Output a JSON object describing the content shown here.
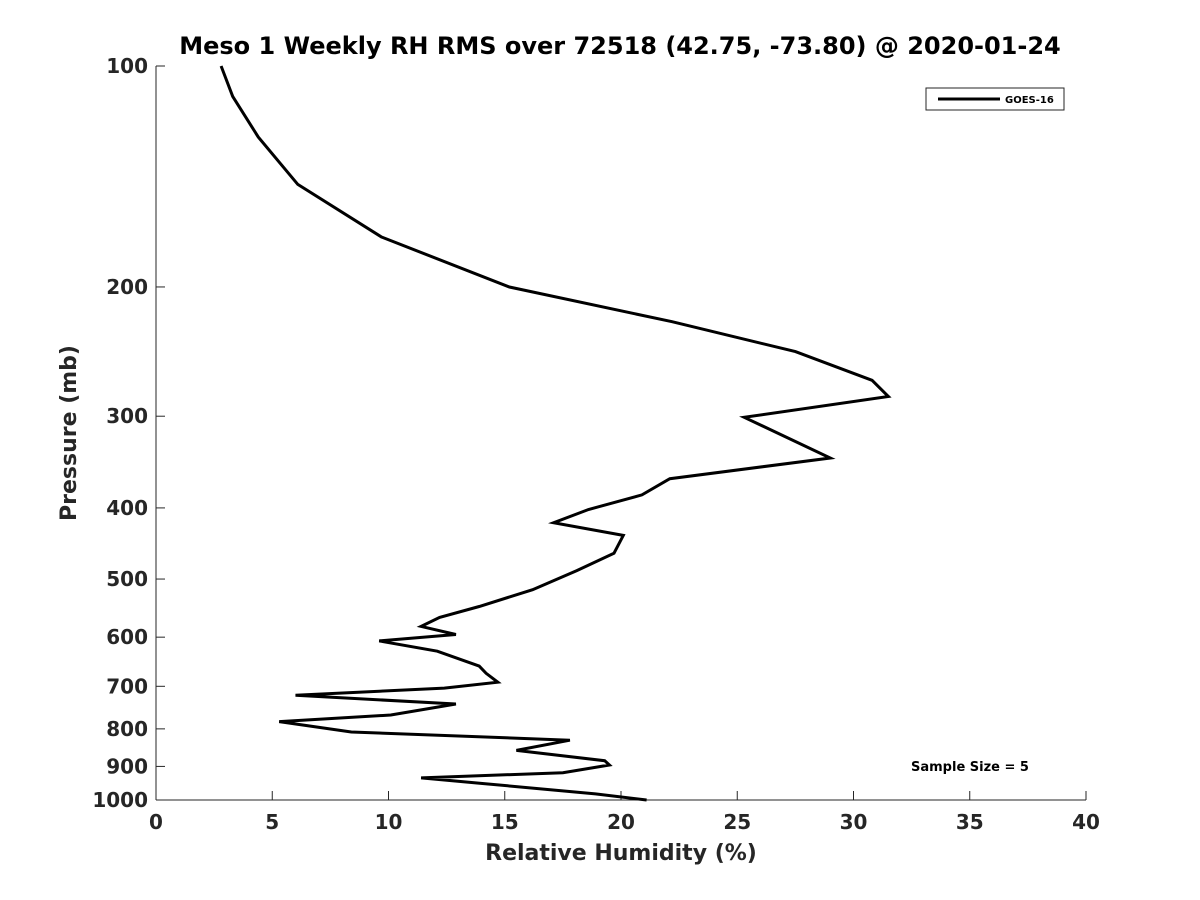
{
  "chart_data": {
    "type": "line",
    "title": "Meso 1 Weekly RH RMS over 72518 (42.75, -73.80) @ 2020-01-24",
    "xlabel": "Relative Humidity (%)",
    "ylabel": "Pressure (mb)",
    "xlim": [
      0,
      40
    ],
    "ylim": [
      100,
      1000
    ],
    "y_scale": "log",
    "y_reversed": true,
    "grid": false,
    "x_ticks": [
      0,
      5,
      10,
      15,
      20,
      25,
      30,
      35,
      40
    ],
    "x_tick_labels": [
      "0",
      "5",
      "10",
      "15",
      "20",
      "25",
      "30",
      "35",
      "40"
    ],
    "y_ticks": [
      100,
      200,
      300,
      400,
      500,
      600,
      700,
      800,
      900,
      1000
    ],
    "y_tick_labels": [
      "100",
      "200",
      "300",
      "400",
      "500",
      "600",
      "700",
      "800",
      "900",
      "1000"
    ],
    "legend": {
      "placement": "top-right",
      "entries": [
        "GOES-16"
      ]
    },
    "annotation": "Sample Size = 5",
    "series": [
      {
        "name": "GOES-16",
        "color": "#000000",
        "x": [
          2.8,
          3.3,
          4.4,
          6.1,
          9.7,
          15.2,
          22.2,
          27.5,
          30.8,
          31.5,
          25.3,
          29.0,
          22.1,
          20.9,
          18.6,
          17.1,
          20.1,
          19.7,
          18.1,
          16.2,
          13.9,
          12.2,
          11.4,
          12.9,
          9.6,
          12.1,
          13.9,
          14.2,
          14.7,
          12.4,
          6.0,
          12.9,
          10.1,
          5.3,
          8.4,
          17.8,
          15.5,
          19.3,
          19.5,
          17.5,
          11.4,
          14.1,
          18.9,
          21.1
        ],
        "y": [
          100,
          110,
          125,
          145,
          171,
          200,
          223,
          245,
          268,
          282,
          301,
          342,
          365,
          384,
          402,
          419,
          436,
          461,
          487,
          517,
          545,
          564,
          580,
          595,
          607,
          627,
          657,
          672,
          691,
          704,
          720,
          740,
          766,
          782,
          808,
          829,
          856,
          884,
          896,
          918,
          933,
          950,
          981,
          1000
        ]
      }
    ]
  }
}
